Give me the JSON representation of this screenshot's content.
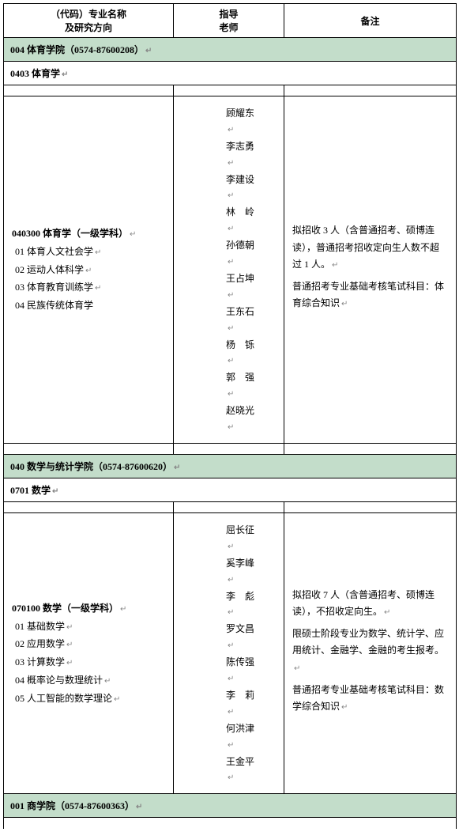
{
  "headers": {
    "col1_line1": "（代码）专业名称",
    "col1_line2": "及研究方向",
    "col2_line1": "指导",
    "col2_line2": "老师",
    "col3": "备注"
  },
  "sections": [
    {
      "college_header": "004 体育学院（0574-87600208）",
      "discipline_header": "0403 体育学",
      "major_code_name": "040300 体育学（一级学科）",
      "directions": [
        "01 体育人文社会学",
        "02 运动人体科学",
        "03 体育教育训练学",
        "04 民族传统体育学"
      ],
      "advisors": [
        "顾耀东",
        "李志勇",
        "李建设",
        "林　岭",
        "孙德朝",
        "王占坤",
        "王东石",
        "杨　铄",
        "郭　强",
        "赵晓光"
      ],
      "remarks": [
        "拟招收 3 人（含普通招考、硕博连读），普通招考招收定向生人数不超过 1 人。",
        "普通招考专业基础考核笔试科目：体育综合知识"
      ]
    },
    {
      "college_header": "040 数学与统计学院（0574-87600620）",
      "discipline_header": "0701 数学",
      "major_code_name": "070100 数学（一级学科）",
      "directions": [
        "01 基础数学",
        "02 应用数学",
        "03 计算数学",
        "04 概率论与数理统计",
        "05 人工智能的数学理论"
      ],
      "advisors": [
        "屈长征",
        "奚李峰",
        "李　彪",
        "罗文昌",
        "陈传强",
        "李　莉",
        "何洪津",
        "王金平"
      ],
      "remarks": [
        "拟招收 7 人（含普通招考、硕博连读），不招收定向生。",
        "限硕士阶段专业为数学、统计学、应用统计、金融学、金融的考生报考。",
        "普通招考专业基础考核笔试科目：数学综合知识"
      ]
    }
  ],
  "footer_college": "001 商学院（0574-87600363）",
  "enter_mark": "↵"
}
